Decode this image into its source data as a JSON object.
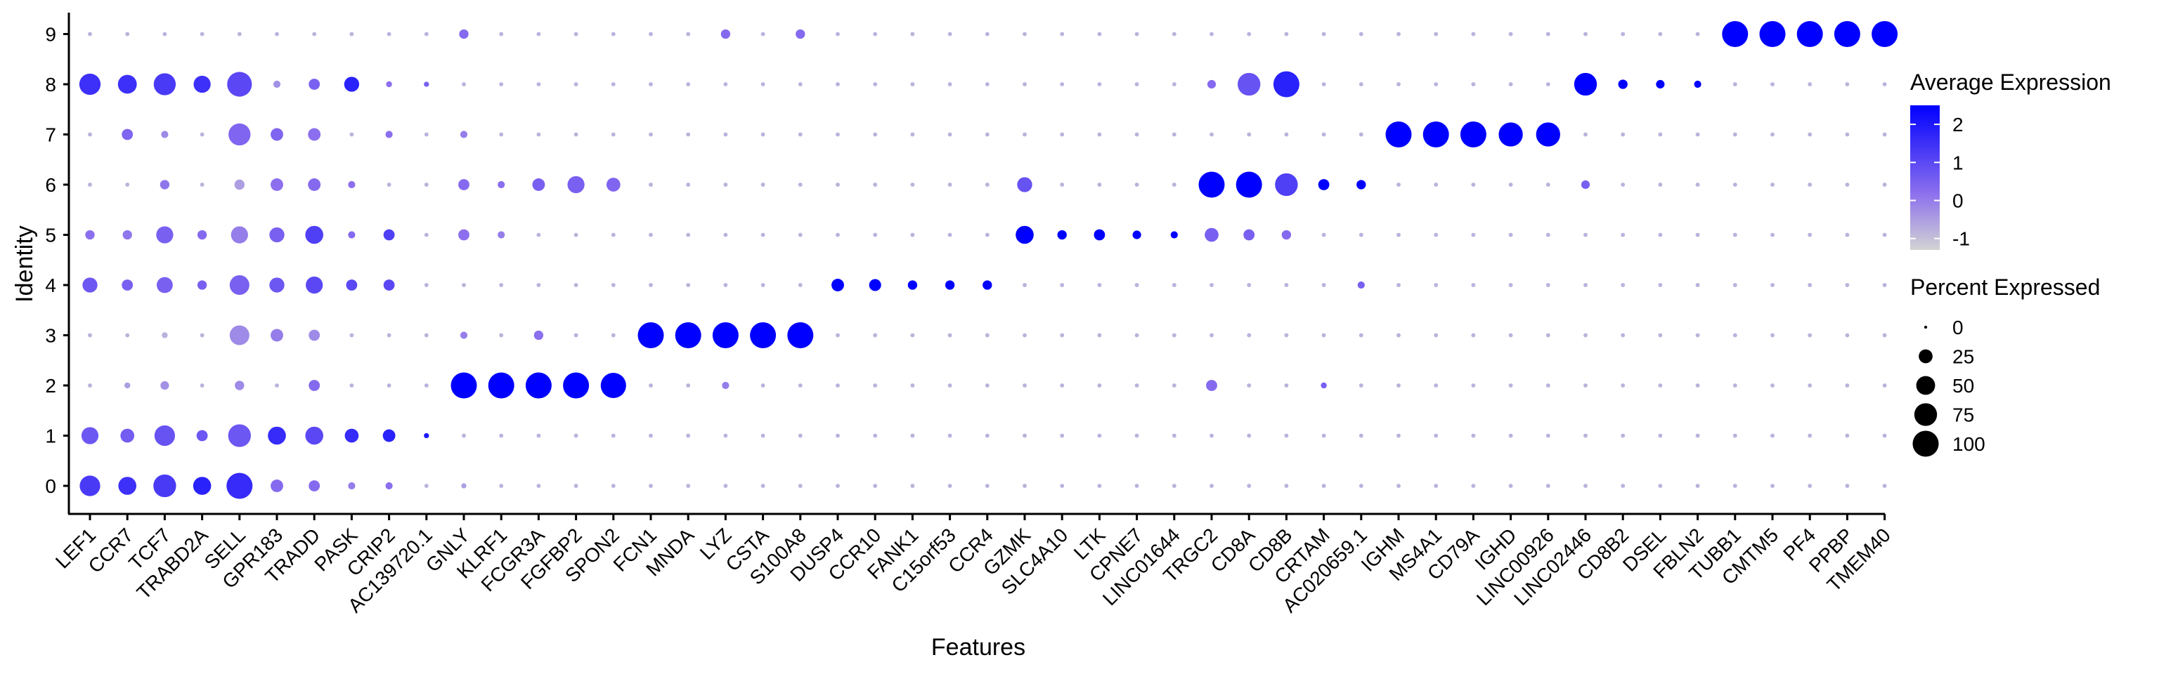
{
  "chart_data": {
    "type": "dotplot",
    "xlabel": "Features",
    "ylabel": "Identity",
    "features": [
      "LEF1",
      "CCR7",
      "TCF7",
      "TRABD2A",
      "SELL",
      "GPR183",
      "TRADD",
      "PASK",
      "CRIP2",
      "AC139720.1",
      "GNLY",
      "KLRF1",
      "FCGR3A",
      "FGFBP2",
      "SPON2",
      "FCN1",
      "MNDA",
      "LYZ",
      "CSTA",
      "S100A8",
      "DUSP4",
      "CCR10",
      "FANK1",
      "C15orf53",
      "CCR4",
      "GZMK",
      "SLC4A10",
      "LTK",
      "CPNE7",
      "LINC01644",
      "TRGC2",
      "CD8A",
      "CD8B",
      "CRTAM",
      "AC020659.1",
      "IGHM",
      "MS4A1",
      "CD79A",
      "IGHD",
      "LINC00926",
      "LINC02446",
      "CD8B2",
      "DSEL",
      "FBLN2",
      "TUBB1",
      "CMTM5",
      "PF4",
      "PPBP",
      "TMEM40"
    ],
    "identities": [
      "0",
      "1",
      "2",
      "3",
      "4",
      "5",
      "6",
      "7",
      "8",
      "9"
    ],
    "color_legend": {
      "title": "Average Expression",
      "ticks": [
        2,
        1,
        0,
        -1
      ],
      "range": [
        -1.3,
        2.5
      ],
      "low_color": "#d3d3d3",
      "high_color": "#0000ff"
    },
    "size_legend": {
      "title": "Percent Expressed",
      "values": [
        0,
        25,
        50,
        75,
        100
      ]
    },
    "points": [
      {
        "feature": "LEF1",
        "id": "0",
        "pct": 60,
        "avg": 1.3
      },
      {
        "feature": "LEF1",
        "id": "1",
        "pct": 40,
        "avg": 0.7
      },
      {
        "feature": "LEF1",
        "id": "4",
        "pct": 30,
        "avg": 0.7
      },
      {
        "feature": "LEF1",
        "id": "5",
        "pct": 10,
        "avg": 0.2
      },
      {
        "feature": "LEF1",
        "id": "8",
        "pct": 65,
        "avg": 1.5
      },
      {
        "feature": "CCR7",
        "id": "0",
        "pct": 45,
        "avg": 1.5
      },
      {
        "feature": "CCR7",
        "id": "1",
        "pct": 25,
        "avg": 0.6
      },
      {
        "feature": "CCR7",
        "id": "2",
        "pct": 3,
        "avg": -0.5
      },
      {
        "feature": "CCR7",
        "id": "4",
        "pct": 15,
        "avg": 0.5
      },
      {
        "feature": "CCR7",
        "id": "5",
        "pct": 10,
        "avg": 0.1
      },
      {
        "feature": "CCR7",
        "id": "7",
        "pct": 15,
        "avg": 0.4
      },
      {
        "feature": "CCR7",
        "id": "8",
        "pct": 50,
        "avg": 1.5
      },
      {
        "feature": "TCF7",
        "id": "0",
        "pct": 75,
        "avg": 1.3
      },
      {
        "feature": "TCF7",
        "id": "1",
        "pct": 60,
        "avg": 0.8
      },
      {
        "feature": "TCF7",
        "id": "2",
        "pct": 8,
        "avg": -0.3
      },
      {
        "feature": "TCF7",
        "id": "3",
        "pct": 3,
        "avg": -0.8
      },
      {
        "feature": "TCF7",
        "id": "4",
        "pct": 35,
        "avg": 0.5
      },
      {
        "feature": "TCF7",
        "id": "5",
        "pct": 40,
        "avg": 0.5
      },
      {
        "feature": "TCF7",
        "id": "6",
        "pct": 10,
        "avg": 0.1
      },
      {
        "feature": "TCF7",
        "id": "7",
        "pct": 5,
        "avg": -0.2
      },
      {
        "feature": "TCF7",
        "id": "8",
        "pct": 70,
        "avg": 1.3
      },
      {
        "feature": "TRABD2A",
        "id": "0",
        "pct": 45,
        "avg": 1.8
      },
      {
        "feature": "TRABD2A",
        "id": "1",
        "pct": 15,
        "avg": 0.7
      },
      {
        "feature": "TRABD2A",
        "id": "4",
        "pct": 10,
        "avg": 0.5
      },
      {
        "feature": "TRABD2A",
        "id": "5",
        "pct": 10,
        "avg": 0.3
      },
      {
        "feature": "TRABD2A",
        "id": "8",
        "pct": 40,
        "avg": 1.5
      },
      {
        "feature": "SELL",
        "id": "0",
        "pct": 100,
        "avg": 1.6
      },
      {
        "feature": "SELL",
        "id": "1",
        "pct": 75,
        "avg": 0.7
      },
      {
        "feature": "SELL",
        "id": "2",
        "pct": 10,
        "avg": -0.2
      },
      {
        "feature": "SELL",
        "id": "3",
        "pct": 55,
        "avg": -0.2
      },
      {
        "feature": "SELL",
        "id": "4",
        "pct": 55,
        "avg": 0.5
      },
      {
        "feature": "SELL",
        "id": "5",
        "pct": 40,
        "avg": 0.0
      },
      {
        "feature": "SELL",
        "id": "6",
        "pct": 12,
        "avg": -0.5
      },
      {
        "feature": "SELL",
        "id": "7",
        "pct": 70,
        "avg": 0.4
      },
      {
        "feature": "SELL",
        "id": "8",
        "pct": 90,
        "avg": 1.0
      },
      {
        "feature": "GPR183",
        "id": "0",
        "pct": 20,
        "avg": 0.3
      },
      {
        "feature": "GPR183",
        "id": "1",
        "pct": 45,
        "avg": 1.6
      },
      {
        "feature": "GPR183",
        "id": "3",
        "pct": 20,
        "avg": 0.0
      },
      {
        "feature": "GPR183",
        "id": "4",
        "pct": 30,
        "avg": 0.7
      },
      {
        "feature": "GPR183",
        "id": "5",
        "pct": 30,
        "avg": 0.5
      },
      {
        "feature": "GPR183",
        "id": "6",
        "pct": 20,
        "avg": 0.2
      },
      {
        "feature": "GPR183",
        "id": "7",
        "pct": 20,
        "avg": 0.4
      },
      {
        "feature": "GPR183",
        "id": "8",
        "pct": 5,
        "avg": -0.3
      },
      {
        "feature": "TRADD",
        "id": "0",
        "pct": 15,
        "avg": 0.3
      },
      {
        "feature": "TRADD",
        "id": "1",
        "pct": 45,
        "avg": 1.0
      },
      {
        "feature": "TRADD",
        "id": "2",
        "pct": 15,
        "avg": 0.3
      },
      {
        "feature": "TRADD",
        "id": "3",
        "pct": 15,
        "avg": -0.2
      },
      {
        "feature": "TRADD",
        "id": "4",
        "pct": 40,
        "avg": 1.0
      },
      {
        "feature": "TRADD",
        "id": "5",
        "pct": 45,
        "avg": 1.2
      },
      {
        "feature": "TRADD",
        "id": "6",
        "pct": 20,
        "avg": 0.3
      },
      {
        "feature": "TRADD",
        "id": "7",
        "pct": 20,
        "avg": 0.2
      },
      {
        "feature": "TRADD",
        "id": "8",
        "pct": 15,
        "avg": 0.5
      },
      {
        "feature": "PASK",
        "id": "0",
        "pct": 5,
        "avg": 0.0
      },
      {
        "feature": "PASK",
        "id": "1",
        "pct": 25,
        "avg": 1.6
      },
      {
        "feature": "PASK",
        "id": "4",
        "pct": 15,
        "avg": 1.0
      },
      {
        "feature": "PASK",
        "id": "5",
        "pct": 5,
        "avg": 0.3
      },
      {
        "feature": "PASK",
        "id": "6",
        "pct": 5,
        "avg": 0.2
      },
      {
        "feature": "PASK",
        "id": "8",
        "pct": 30,
        "avg": 1.8
      },
      {
        "feature": "CRIP2",
        "id": "0",
        "pct": 5,
        "avg": 0.2
      },
      {
        "feature": "CRIP2",
        "id": "1",
        "pct": 20,
        "avg": 1.8
      },
      {
        "feature": "CRIP2",
        "id": "4",
        "pct": 15,
        "avg": 1.0
      },
      {
        "feature": "CRIP2",
        "id": "5",
        "pct": 15,
        "avg": 1.2
      },
      {
        "feature": "CRIP2",
        "id": "7",
        "pct": 5,
        "avg": 0.2
      },
      {
        "feature": "CRIP2",
        "id": "8",
        "pct": 3,
        "avg": 0.2
      },
      {
        "feature": "AC139720.1",
        "id": "1",
        "pct": 2,
        "avg": 2.0
      },
      {
        "feature": "AC139720.1",
        "id": "8",
        "pct": 2,
        "avg": 0.5
      },
      {
        "feature": "GNLY",
        "id": "0",
        "pct": 2,
        "avg": -0.5
      },
      {
        "feature": "GNLY",
        "id": "2",
        "pct": 100,
        "avg": 2.5
      },
      {
        "feature": "GNLY",
        "id": "3",
        "pct": 5,
        "avg": 0.0
      },
      {
        "feature": "GNLY",
        "id": "5",
        "pct": 15,
        "avg": 0.2
      },
      {
        "feature": "GNLY",
        "id": "6",
        "pct": 15,
        "avg": 0.3
      },
      {
        "feature": "GNLY",
        "id": "7",
        "pct": 5,
        "avg": 0.0
      },
      {
        "feature": "GNLY",
        "id": "9",
        "pct": 10,
        "avg": 0.3
      },
      {
        "feature": "KLRF1",
        "id": "2",
        "pct": 100,
        "avg": 2.5
      },
      {
        "feature": "KLRF1",
        "id": "5",
        "pct": 5,
        "avg": 0.0
      },
      {
        "feature": "KLRF1",
        "id": "6",
        "pct": 5,
        "avg": 0.2
      },
      {
        "feature": "FCGR3A",
        "id": "2",
        "pct": 100,
        "avg": 2.5
      },
      {
        "feature": "FCGR3A",
        "id": "3",
        "pct": 10,
        "avg": 0.2
      },
      {
        "feature": "FCGR3A",
        "id": "6",
        "pct": 20,
        "avg": 0.5
      },
      {
        "feature": "FGFBP2",
        "id": "2",
        "pct": 100,
        "avg": 2.5
      },
      {
        "feature": "FGFBP2",
        "id": "6",
        "pct": 40,
        "avg": 0.5
      },
      {
        "feature": "SPON2",
        "id": "2",
        "pct": 95,
        "avg": 2.5
      },
      {
        "feature": "SPON2",
        "id": "6",
        "pct": 25,
        "avg": 0.4
      },
      {
        "feature": "FCN1",
        "id": "3",
        "pct": 100,
        "avg": 2.5
      },
      {
        "feature": "MNDA",
        "id": "3",
        "pct": 100,
        "avg": 2.5
      },
      {
        "feature": "LYZ",
        "id": "3",
        "pct": 100,
        "avg": 2.5
      },
      {
        "feature": "LYZ",
        "id": "2",
        "pct": 5,
        "avg": 0.0
      },
      {
        "feature": "LYZ",
        "id": "9",
        "pct": 10,
        "avg": 0.3
      },
      {
        "feature": "CSTA",
        "id": "3",
        "pct": 100,
        "avg": 2.5
      },
      {
        "feature": "S100A8",
        "id": "3",
        "pct": 100,
        "avg": 2.5
      },
      {
        "feature": "S100A8",
        "id": "9",
        "pct": 10,
        "avg": 0.3
      },
      {
        "feature": "DUSP4",
        "id": "4",
        "pct": 20,
        "avg": 2.5
      },
      {
        "feature": "CCR10",
        "id": "4",
        "pct": 18,
        "avg": 2.5
      },
      {
        "feature": "FANK1",
        "id": "4",
        "pct": 10,
        "avg": 2.5
      },
      {
        "feature": "C15orf53",
        "id": "4",
        "pct": 10,
        "avg": 2.5
      },
      {
        "feature": "CCR4",
        "id": "4",
        "pct": 10,
        "avg": 2.5
      },
      {
        "feature": "GZMK",
        "id": "5",
        "pct": 45,
        "avg": 2.5
      },
      {
        "feature": "GZMK",
        "id": "6",
        "pct": 30,
        "avg": 0.8
      },
      {
        "feature": "SLC4A10",
        "id": "5",
        "pct": 10,
        "avg": 2.5
      },
      {
        "feature": "LTK",
        "id": "5",
        "pct": 15,
        "avg": 2.5
      },
      {
        "feature": "CPNE7",
        "id": "5",
        "pct": 8,
        "avg": 2.5
      },
      {
        "feature": "LINC01644",
        "id": "5",
        "pct": 5,
        "avg": 2.5
      },
      {
        "feature": "TRGC2",
        "id": "6",
        "pct": 100,
        "avg": 2.5
      },
      {
        "feature": "TRGC2",
        "id": "5",
        "pct": 25,
        "avg": 0.5
      },
      {
        "feature": "TRGC2",
        "id": "2",
        "pct": 15,
        "avg": 0.3
      },
      {
        "feature": "TRGC2",
        "id": "8",
        "pct": 8,
        "avg": 0.3
      },
      {
        "feature": "CD8A",
        "id": "6",
        "pct": 100,
        "avg": 2.5
      },
      {
        "feature": "CD8A",
        "id": "8",
        "pct": 75,
        "avg": 0.8
      },
      {
        "feature": "CD8A",
        "id": "5",
        "pct": 15,
        "avg": 0.5
      },
      {
        "feature": "CD8B",
        "id": "8",
        "pct": 100,
        "avg": 1.8
      },
      {
        "feature": "CD8B",
        "id": "6",
        "pct": 75,
        "avg": 1.2
      },
      {
        "feature": "CD8B",
        "id": "5",
        "pct": 10,
        "avg": 0.3
      },
      {
        "feature": "CRTAM",
        "id": "6",
        "pct": 15,
        "avg": 2.5
      },
      {
        "feature": "CRTAM",
        "id": "2",
        "pct": 3,
        "avg": 0.5
      },
      {
        "feature": "AC020659.1",
        "id": "6",
        "pct": 10,
        "avg": 2.5
      },
      {
        "feature": "AC020659.1",
        "id": "4",
        "pct": 5,
        "avg": 0.5
      },
      {
        "feature": "IGHM",
        "id": "7",
        "pct": 100,
        "avg": 2.5
      },
      {
        "feature": "MS4A1",
        "id": "7",
        "pct": 100,
        "avg": 2.5
      },
      {
        "feature": "CD79A",
        "id": "7",
        "pct": 100,
        "avg": 2.5
      },
      {
        "feature": "IGHD",
        "id": "7",
        "pct": 85,
        "avg": 2.5
      },
      {
        "feature": "LINC00926",
        "id": "7",
        "pct": 85,
        "avg": 2.5
      },
      {
        "feature": "LINC02446",
        "id": "8",
        "pct": 75,
        "avg": 2.5
      },
      {
        "feature": "LINC02446",
        "id": "6",
        "pct": 8,
        "avg": 0.5
      },
      {
        "feature": "CD8B2",
        "id": "8",
        "pct": 10,
        "avg": 2.5
      },
      {
        "feature": "DSEL",
        "id": "8",
        "pct": 8,
        "avg": 2.5
      },
      {
        "feature": "FBLN2",
        "id": "8",
        "pct": 5,
        "avg": 2.5
      },
      {
        "feature": "TUBB1",
        "id": "9",
        "pct": 100,
        "avg": 2.5
      },
      {
        "feature": "CMTM5",
        "id": "9",
        "pct": 100,
        "avg": 2.5
      },
      {
        "feature": "PF4",
        "id": "9",
        "pct": 100,
        "avg": 2.5
      },
      {
        "feature": "PPBP",
        "id": "9",
        "pct": 100,
        "avg": 2.5
      },
      {
        "feature": "TMEM40",
        "id": "9",
        "pct": 100,
        "avg": 2.5
      }
    ]
  }
}
